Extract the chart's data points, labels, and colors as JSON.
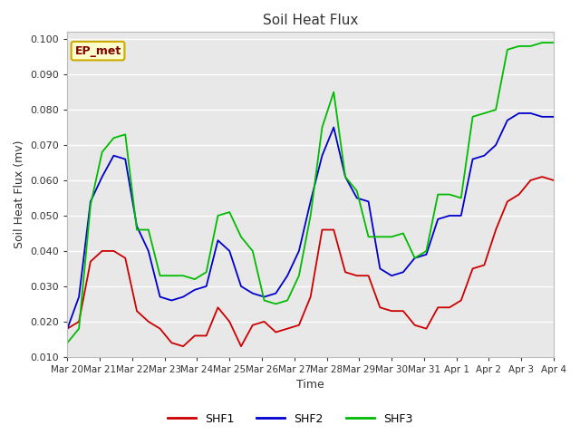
{
  "title": "Soil Heat Flux",
  "xlabel": "Time",
  "ylabel": "Soil Heat Flux (mv)",
  "ylim": [
    0.01,
    0.102
  ],
  "yticks": [
    0.01,
    0.02,
    0.03,
    0.04,
    0.05,
    0.06,
    0.07,
    0.08,
    0.09,
    0.1
  ],
  "xtick_labels": [
    "Mar 20",
    "Mar 21",
    "Mar 22",
    "Mar 23",
    "Mar 24",
    "Mar 25",
    "Mar 26",
    "Mar 27",
    "Mar 28",
    "Mar 29",
    "Mar 30",
    "Mar 31",
    "Apr 1",
    "Apr 2",
    "Apr 3",
    "Apr 4"
  ],
  "legend_label": "EP_met",
  "legend_entries": [
    "SHF1",
    "SHF2",
    "SHF3"
  ],
  "line_colors": [
    "#cc0000",
    "#0000cc",
    "#00bb00"
  ],
  "fig_bg_color": "#ffffff",
  "plot_bg_color": "#e8e8e8",
  "grid_color": "#ffffff",
  "SHF1": [
    0.018,
    0.02,
    0.037,
    0.04,
    0.04,
    0.038,
    0.023,
    0.02,
    0.018,
    0.014,
    0.013,
    0.016,
    0.016,
    0.024,
    0.02,
    0.013,
    0.019,
    0.02,
    0.017,
    0.018,
    0.019,
    0.027,
    0.046,
    0.046,
    0.034,
    0.033,
    0.033,
    0.024,
    0.023,
    0.023,
    0.019,
    0.018,
    0.024,
    0.024,
    0.026,
    0.035,
    0.036,
    0.046,
    0.054,
    0.056,
    0.06,
    0.061,
    0.06
  ],
  "SHF2": [
    0.018,
    0.027,
    0.054,
    0.061,
    0.067,
    0.066,
    0.047,
    0.04,
    0.027,
    0.026,
    0.027,
    0.029,
    0.03,
    0.043,
    0.04,
    0.03,
    0.028,
    0.027,
    0.028,
    0.033,
    0.04,
    0.054,
    0.067,
    0.075,
    0.061,
    0.055,
    0.054,
    0.035,
    0.033,
    0.034,
    0.038,
    0.039,
    0.049,
    0.05,
    0.05,
    0.066,
    0.067,
    0.07,
    0.077,
    0.079,
    0.079,
    0.078,
    0.078
  ],
  "SHF3": [
    0.014,
    0.018,
    0.053,
    0.068,
    0.072,
    0.073,
    0.046,
    0.046,
    0.033,
    0.033,
    0.033,
    0.032,
    0.034,
    0.05,
    0.051,
    0.044,
    0.04,
    0.026,
    0.025,
    0.026,
    0.033,
    0.05,
    0.075,
    0.085,
    0.061,
    0.057,
    0.044,
    0.044,
    0.044,
    0.045,
    0.038,
    0.04,
    0.056,
    0.056,
    0.055,
    0.078,
    0.079,
    0.08,
    0.097,
    0.098,
    0.098,
    0.099,
    0.099
  ]
}
